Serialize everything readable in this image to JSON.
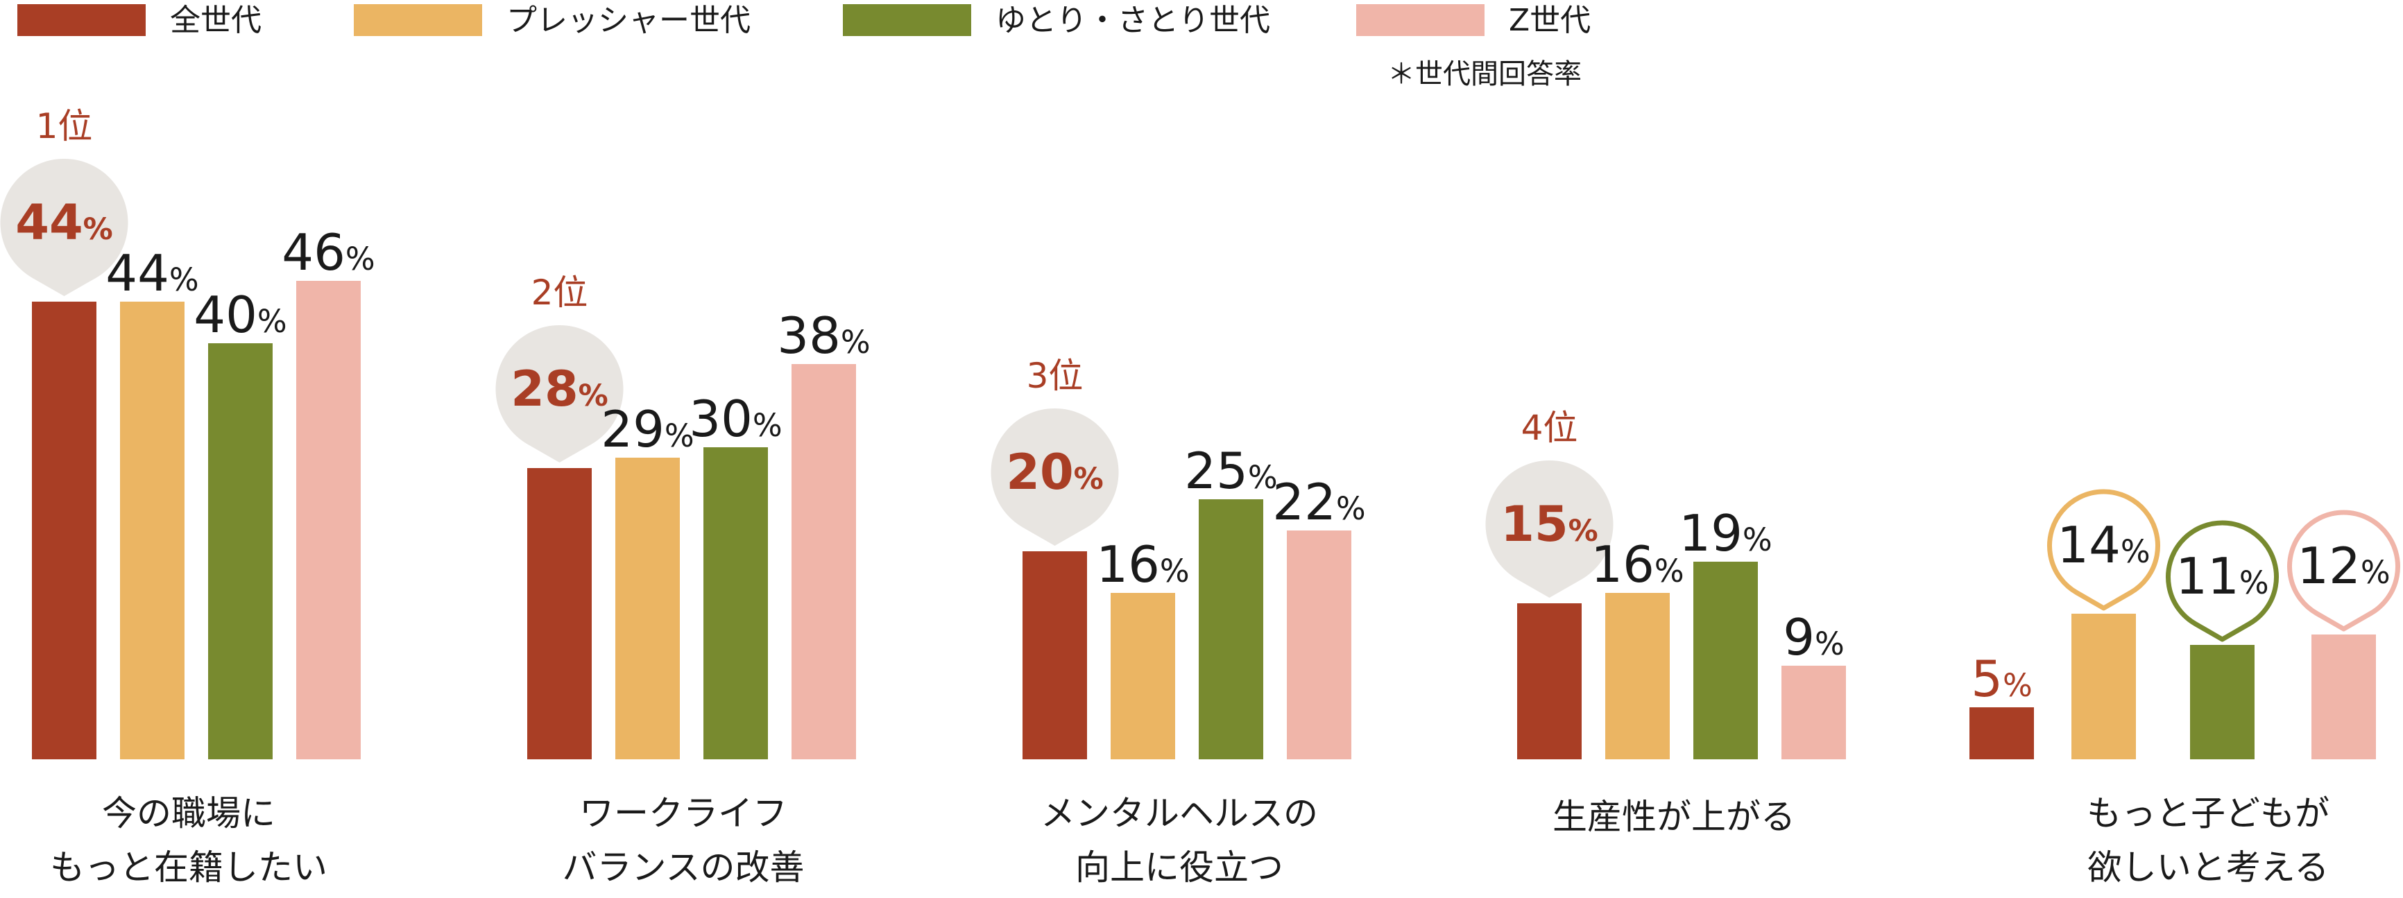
{
  "legend": [
    {
      "name": "全世代",
      "color": "#A93E25"
    },
    {
      "name": "プレッシャー世代",
      "color": "#EBB563"
    },
    {
      "name": "ゆとり・さとり世代",
      "color": "#788A2F"
    },
    {
      "name": "Z世代",
      "color": "#F0B5A9"
    }
  ],
  "note": "＊世代間回答率",
  "colors": {
    "bubble": "#E8E5E1",
    "rank_text": "#A93E25",
    "value_text": "#1a1a1a"
  },
  "chart_data": {
    "type": "bar",
    "title": "",
    "xlabel": "",
    "ylabel": "",
    "ylim": [
      0,
      50
    ],
    "grid": false,
    "legend_position": "top-left",
    "unit": "%",
    "categories": [
      {
        "lines": [
          "今の職場に",
          "もっと在籍したい"
        ],
        "rank": "1位"
      },
      {
        "lines": [
          "ワークライフ",
          "バランスの改善"
        ],
        "rank": "2位"
      },
      {
        "lines": [
          "メンタルヘルスの",
          "向上に役立つ"
        ],
        "rank": "3位"
      },
      {
        "lines": [
          "生産性が上がる"
        ],
        "rank": "4位"
      },
      {
        "lines": [
          "もっと子どもが",
          "欲しいと考える"
        ],
        "rank": ""
      }
    ],
    "series": [
      {
        "name": "全世代",
        "values": [
          44,
          28,
          20,
          15,
          5
        ]
      },
      {
        "name": "プレッシャー世代",
        "values": [
          44,
          29,
          16,
          16,
          14
        ]
      },
      {
        "name": "ゆとり・さとり世代",
        "values": [
          40,
          30,
          25,
          19,
          11
        ]
      },
      {
        "name": "Z世代",
        "values": [
          46,
          38,
          22,
          9,
          12
        ]
      }
    ]
  }
}
